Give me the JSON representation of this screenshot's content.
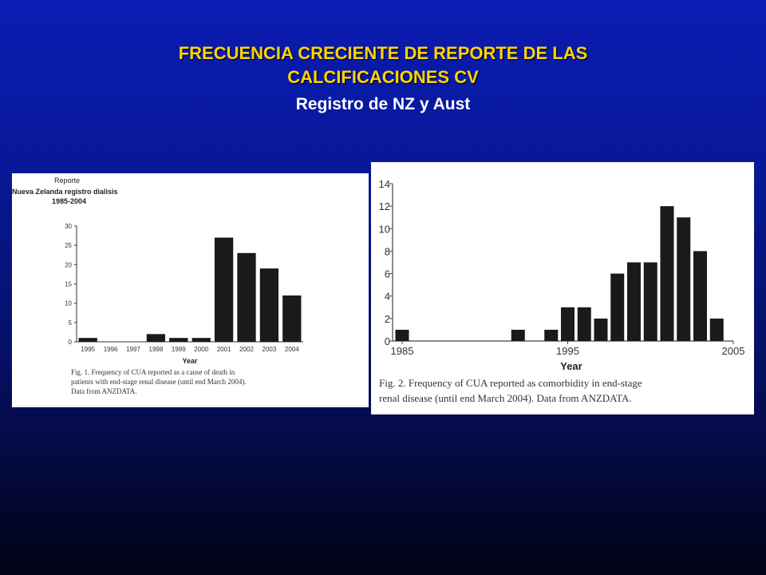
{
  "slide": {
    "title_line1": "FRECUENCIA CRECIENTE DE REPORTE DE LAS",
    "title_line2": "CALCIFICACIONES CV",
    "subtitle": "Registro de NZ y Aust"
  },
  "colors": {
    "bar": "#1a1a1a",
    "title": "#ffd500",
    "subtitle": "#ffffff"
  },
  "chart_data": [
    {
      "type": "bar",
      "header_lines": [
        "Reporte",
        "Nueva Zelanda  registro dialisis",
        "1985-2004"
      ],
      "categories": [
        "1995",
        "1996",
        "1997",
        "1998",
        "1999",
        "2000",
        "2001",
        "2002",
        "2003",
        "2004"
      ],
      "values": [
        1,
        0,
        0,
        2,
        1,
        1,
        27,
        23,
        19,
        12
      ],
      "ylim": [
        0,
        30
      ],
      "yticks": [
        0,
        5,
        10,
        15,
        20,
        25,
        30
      ],
      "xlabel": "Year",
      "ylabel": "",
      "caption_lines": [
        "Fig. 1. Frequency of CUA reported as a cause of death in",
        "patients with end-stage renal disease (until end March 2004).",
        "Data from ANZDATA."
      ]
    },
    {
      "type": "bar",
      "x": [
        1985,
        1986,
        1987,
        1988,
        1989,
        1990,
        1991,
        1992,
        1993,
        1994,
        1995,
        1996,
        1997,
        1998,
        1999,
        2000,
        2001,
        2002,
        2003,
        2004
      ],
      "values": [
        1,
        0,
        0,
        0,
        0,
        0,
        0,
        1,
        0,
        1,
        3,
        3,
        2,
        6,
        7,
        7,
        12,
        11,
        8,
        2
      ],
      "xticks": [
        1985,
        1995,
        2005
      ],
      "ylim": [
        0,
        14
      ],
      "yticks": [
        0,
        2,
        4,
        6,
        8,
        10,
        12,
        14
      ],
      "xlabel": "Year",
      "ylabel": "",
      "caption_lines": [
        "Fig. 2. Frequency of CUA reported as comorbidity in end-stage",
        "renal disease (until end March 2004). Data from ANZDATA."
      ]
    }
  ]
}
